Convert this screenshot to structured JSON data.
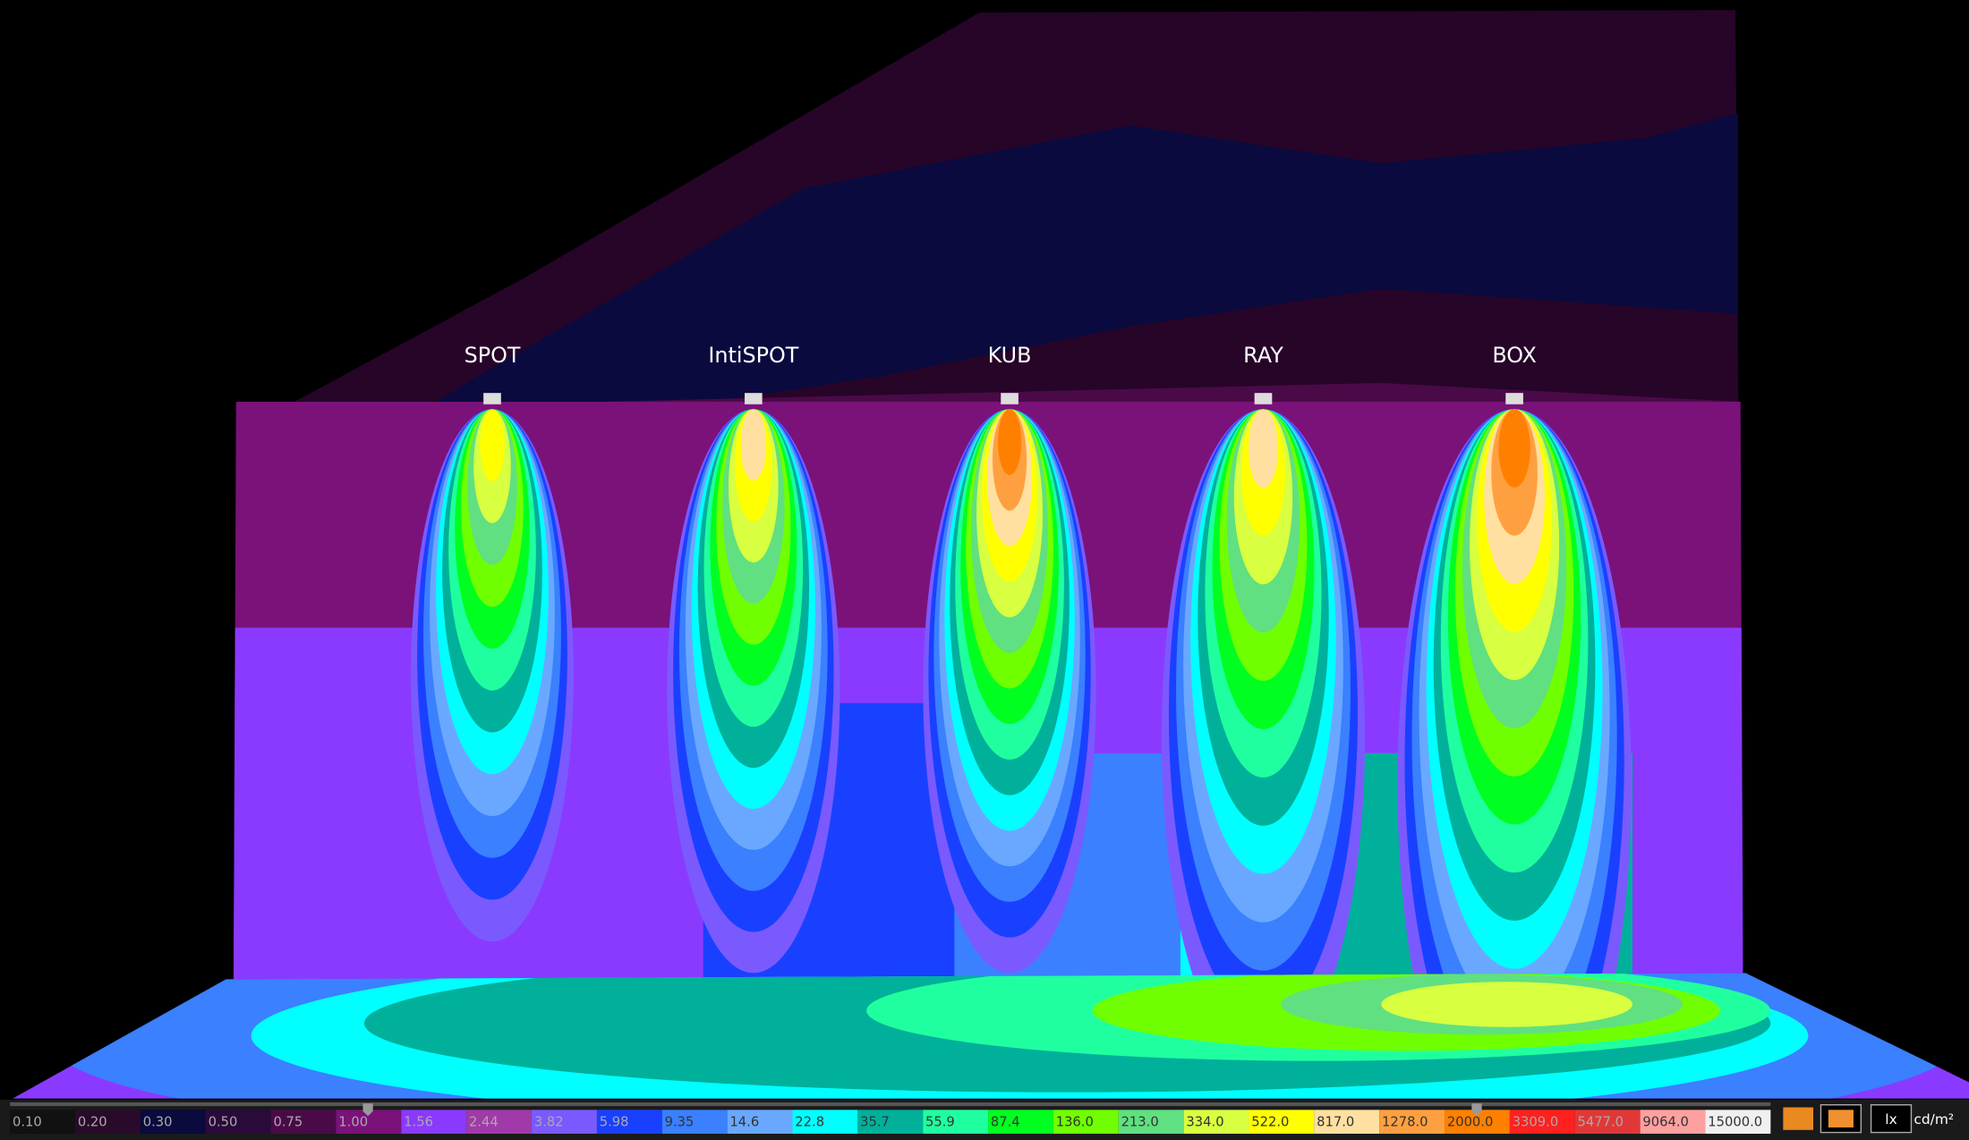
{
  "lights": [
    {
      "label": "SPOT"
    },
    {
      "label": "IntiSPOT"
    },
    {
      "label": "KUB"
    },
    {
      "label": "RAY"
    },
    {
      "label": "BOX"
    }
  ],
  "legend": [
    {
      "value": "0.10",
      "color": "#111111"
    },
    {
      "value": "0.20",
      "color": "#2a0a2a"
    },
    {
      "value": "0.30",
      "color": "#0a0a3e"
    },
    {
      "value": "0.50",
      "color": "#2a0a3a"
    },
    {
      "value": "0.75",
      "color": "#4a0a48"
    },
    {
      "value": "1.00",
      "color": "#7a127a"
    },
    {
      "value": "1.56",
      "color": "#8a3aff"
    },
    {
      "value": "2.44",
      "color": "#a03aa8"
    },
    {
      "value": "3.82",
      "color": "#7a5aff"
    },
    {
      "value": "5.98",
      "color": "#1a40ff"
    },
    {
      "value": "9.35",
      "color": "#3a80ff"
    },
    {
      "value": "14.6",
      "color": "#6aa8ff"
    },
    {
      "value": "22.8",
      "color": "#00ffff"
    },
    {
      "value": "35.7",
      "color": "#00b09a"
    },
    {
      "value": "55.9",
      "color": "#20ffa0"
    },
    {
      "value": "87.4",
      "color": "#00ff20"
    },
    {
      "value": "136.0",
      "color": "#70ff00"
    },
    {
      "value": "213.0",
      "color": "#60e080"
    },
    {
      "value": "334.0",
      "color": "#d8ff40"
    },
    {
      "value": "522.0",
      "color": "#ffff00"
    },
    {
      "value": "817.0",
      "color": "#ffe0a0"
    },
    {
      "value": "1278.0",
      "color": "#ffa040"
    },
    {
      "value": "2000.0",
      "color": "#ff8000"
    },
    {
      "value": "3309.0",
      "color": "#ff2020"
    },
    {
      "value": "5477.0",
      "color": "#e03838"
    },
    {
      "value": "9064.0",
      "color": "#ffa0a0"
    },
    {
      "value": "15000.0",
      "color": "#f0f0f0"
    }
  ],
  "units": [
    "lx",
    "cd/m²"
  ]
}
